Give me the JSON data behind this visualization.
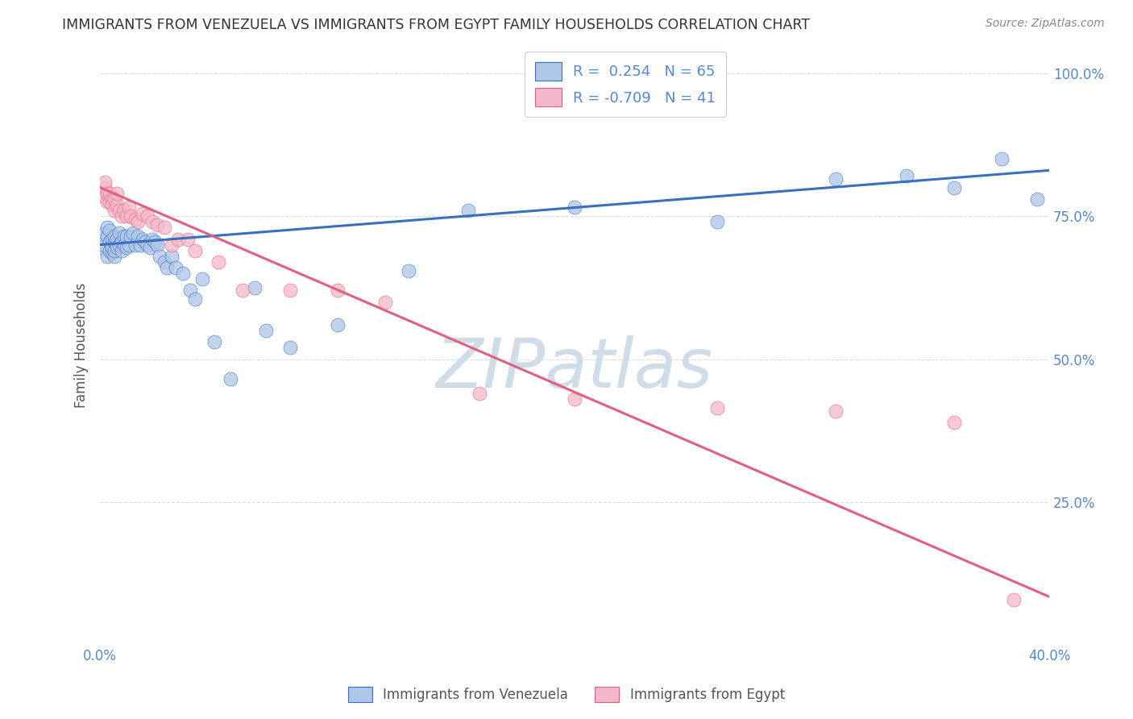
{
  "title": "IMMIGRANTS FROM VENEZUELA VS IMMIGRANTS FROM EGYPT FAMILY HOUSEHOLDS CORRELATION CHART",
  "source": "Source: ZipAtlas.com",
  "ylabel": "Family Households",
  "x_min": 0.0,
  "x_max": 0.4,
  "y_min": 0.0,
  "y_max": 1.05,
  "x_ticks": [
    0.0,
    0.1,
    0.2,
    0.3,
    0.4
  ],
  "y_ticks": [
    0.25,
    0.5,
    0.75,
    1.0
  ],
  "y_tick_labels": [
    "25.0%",
    "50.0%",
    "75.0%",
    "100.0%"
  ],
  "legend_r_venezuela": "0.254",
  "legend_n_venezuela": "65",
  "legend_r_egypt": "-0.709",
  "legend_n_egypt": "41",
  "venezuela_color": "#aec6e8",
  "egypt_color": "#f5b8c8",
  "trend_venezuela_color": "#3a6fbf",
  "trend_egypt_color": "#e06080",
  "background_color": "#ffffff",
  "watermark_text": "ZIPatlas",
  "watermark_color": "#d0dce8",
  "grid_color": "#cccccc",
  "title_color": "#333333",
  "axis_label_color": "#5588cc",
  "venezuela_x": [
    0.001,
    0.002,
    0.002,
    0.003,
    0.003,
    0.003,
    0.004,
    0.004,
    0.004,
    0.005,
    0.005,
    0.005,
    0.005,
    0.006,
    0.006,
    0.006,
    0.006,
    0.007,
    0.007,
    0.007,
    0.008,
    0.008,
    0.009,
    0.009,
    0.01,
    0.01,
    0.011,
    0.011,
    0.012,
    0.013,
    0.014,
    0.015,
    0.016,
    0.017,
    0.018,
    0.019,
    0.02,
    0.021,
    0.022,
    0.023,
    0.024,
    0.025,
    0.027,
    0.028,
    0.03,
    0.032,
    0.035,
    0.038,
    0.04,
    0.043,
    0.048,
    0.055,
    0.065,
    0.07,
    0.08,
    0.1,
    0.13,
    0.155,
    0.2,
    0.26,
    0.31,
    0.34,
    0.36,
    0.38,
    0.395
  ],
  "venezuela_y": [
    0.695,
    0.7,
    0.72,
    0.715,
    0.68,
    0.73,
    0.69,
    0.705,
    0.725,
    0.685,
    0.7,
    0.71,
    0.695,
    0.68,
    0.705,
    0.715,
    0.69,
    0.7,
    0.71,
    0.695,
    0.7,
    0.72,
    0.705,
    0.69,
    0.715,
    0.7,
    0.715,
    0.695,
    0.7,
    0.715,
    0.72,
    0.7,
    0.715,
    0.7,
    0.71,
    0.705,
    0.7,
    0.695,
    0.71,
    0.705,
    0.7,
    0.68,
    0.67,
    0.66,
    0.68,
    0.66,
    0.65,
    0.62,
    0.605,
    0.64,
    0.53,
    0.465,
    0.625,
    0.55,
    0.52,
    0.56,
    0.655,
    0.76,
    0.765,
    0.74,
    0.815,
    0.82,
    0.8,
    0.85,
    0.78
  ],
  "egypt_x": [
    0.001,
    0.002,
    0.002,
    0.003,
    0.003,
    0.004,
    0.004,
    0.005,
    0.005,
    0.006,
    0.006,
    0.007,
    0.007,
    0.008,
    0.009,
    0.01,
    0.011,
    0.012,
    0.013,
    0.015,
    0.016,
    0.018,
    0.02,
    0.022,
    0.024,
    0.027,
    0.03,
    0.033,
    0.037,
    0.04,
    0.05,
    0.06,
    0.08,
    0.1,
    0.12,
    0.16,
    0.2,
    0.26,
    0.31,
    0.36,
    0.385
  ],
  "egypt_y": [
    0.785,
    0.8,
    0.81,
    0.79,
    0.775,
    0.775,
    0.79,
    0.78,
    0.77,
    0.78,
    0.76,
    0.77,
    0.79,
    0.76,
    0.75,
    0.76,
    0.75,
    0.765,
    0.75,
    0.745,
    0.74,
    0.755,
    0.75,
    0.74,
    0.735,
    0.73,
    0.7,
    0.71,
    0.71,
    0.69,
    0.67,
    0.62,
    0.62,
    0.62,
    0.6,
    0.44,
    0.43,
    0.415,
    0.41,
    0.39,
    0.08
  ],
  "trend_v_x0": 0.0,
  "trend_v_y0": 0.7,
  "trend_v_x1": 0.4,
  "trend_v_y1": 0.83,
  "trend_e_x0": 0.0,
  "trend_e_y0": 0.8,
  "trend_e_x1": 0.4,
  "trend_e_y1": 0.085
}
